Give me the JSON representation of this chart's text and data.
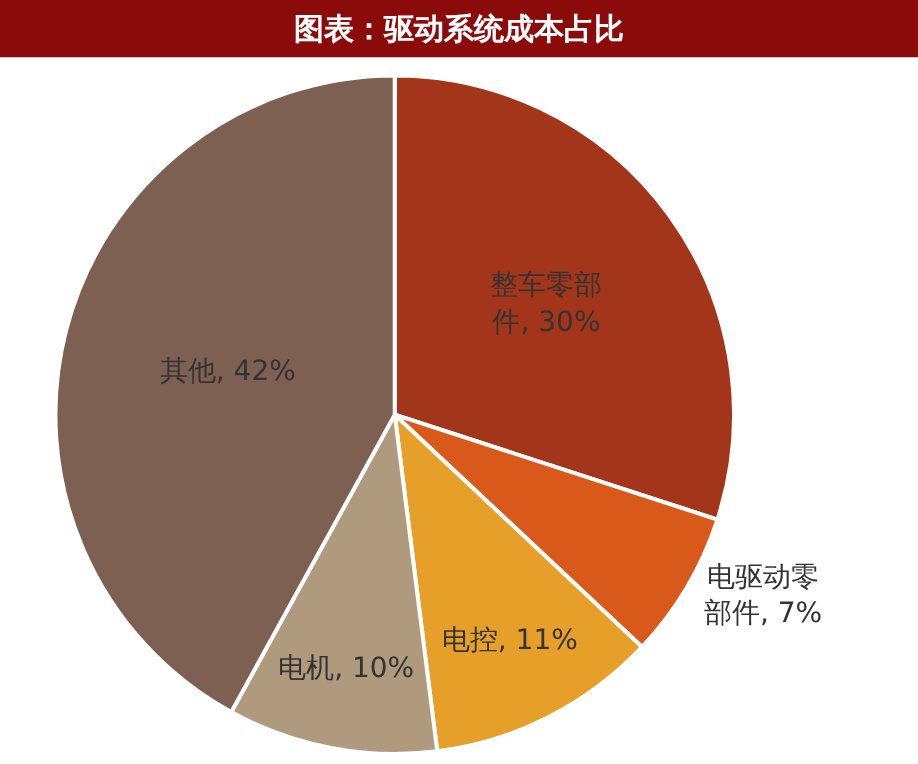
{
  "chart_data": {
    "type": "pie",
    "title": "图表：驱动系统成本占比",
    "categories": [
      "整车零部件",
      "电驱动零部件",
      "电控",
      "电机",
      "其他"
    ],
    "values": [
      30,
      7,
      11,
      10,
      42
    ],
    "value_labels": [
      "30%",
      "7%",
      "11%",
      "10%",
      "42%"
    ],
    "colors": [
      "#a3361a",
      "#d9591b",
      "#e6a02a",
      "#b09a7e",
      "#7e6052"
    ]
  }
}
